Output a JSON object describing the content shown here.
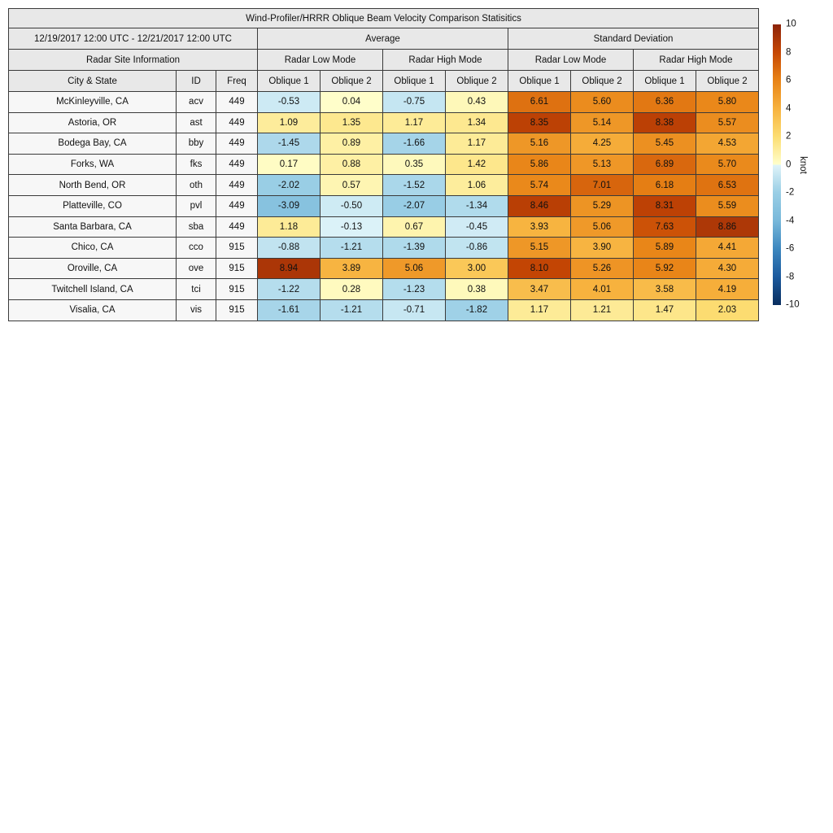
{
  "title": "Wind-Profiler/HRRR Oblique Beam Velocity Comparison Statisitics",
  "header": {
    "date_range": "12/19/2017 12:00 UTC - 12/21/2017 12:00 UTC",
    "group_average": "Average",
    "group_std": "Standard Deviation",
    "radar_site_info": "Radar Site Information",
    "mode_low": "Radar Low Mode",
    "mode_high": "Radar High Mode",
    "col_city": "City & State",
    "col_id": "ID",
    "col_freq": "Freq",
    "oblique1": "Oblique 1",
    "oblique2": "Oblique 2"
  },
  "colors": {
    "header_bg": "#e8e8e8",
    "label_cell_bg": "#f7f7f7",
    "border": "#3a3a3a"
  },
  "colorbar": {
    "label": "knot",
    "min": -10,
    "max": 10,
    "ticks": [
      10,
      8,
      6,
      4,
      2,
      0,
      -2,
      -4,
      -6,
      -8,
      -10
    ],
    "stops": [
      {
        "v": -10,
        "c": "#082d5e"
      },
      {
        "v": -8,
        "c": "#1b5a9e"
      },
      {
        "v": -6,
        "c": "#3c87bf"
      },
      {
        "v": -4,
        "c": "#78b8da"
      },
      {
        "v": -2,
        "c": "#99cee5"
      },
      {
        "v": -0.001,
        "c": "#e0f4f9"
      },
      {
        "v": 0,
        "c": "#ffffcc"
      },
      {
        "v": 2,
        "c": "#fcdd72"
      },
      {
        "v": 4,
        "c": "#f7b23e"
      },
      {
        "v": 6,
        "c": "#e88316"
      },
      {
        "v": 8,
        "c": "#c64704"
      },
      {
        "v": 10,
        "c": "#8c230a"
      }
    ]
  },
  "chart_data": {
    "type": "table",
    "title": "Wind-Profiler/HRRR Oblique Beam Velocity Comparison Statisitics",
    "value_unit": "knot",
    "color_range": [
      -10,
      10
    ],
    "column_groups": [
      "Average",
      "Standard Deviation"
    ],
    "column_modes": [
      "Radar Low Mode",
      "Radar High Mode"
    ],
    "column_obliques": [
      "Oblique 1",
      "Oblique 2"
    ],
    "value_columns": [
      "Average / Radar Low Mode / Oblique 1",
      "Average / Radar Low Mode / Oblique 2",
      "Average / Radar High Mode / Oblique 1",
      "Average / Radar High Mode / Oblique 2",
      "Standard Deviation / Radar Low Mode / Oblique 1",
      "Standard Deviation / Radar Low Mode / Oblique 2",
      "Standard Deviation / Radar High Mode / Oblique 1",
      "Standard Deviation / Radar High Mode / Oblique 2"
    ],
    "rows": [
      {
        "city": "McKinleyville, CA",
        "id": "acv",
        "freq": "449",
        "values": [
          -0.53,
          0.04,
          -0.75,
          0.43,
          6.61,
          5.6,
          6.36,
          5.8
        ]
      },
      {
        "city": "Astoria, OR",
        "id": "ast",
        "freq": "449",
        "values": [
          1.09,
          1.35,
          1.17,
          1.34,
          8.35,
          5.14,
          8.38,
          5.57
        ]
      },
      {
        "city": "Bodega Bay, CA",
        "id": "bby",
        "freq": "449",
        "values": [
          -1.45,
          0.89,
          -1.66,
          1.17,
          5.16,
          4.25,
          5.45,
          4.53
        ]
      },
      {
        "city": "Forks, WA",
        "id": "fks",
        "freq": "449",
        "values": [
          0.17,
          0.88,
          0.35,
          1.42,
          5.86,
          5.13,
          6.89,
          5.7
        ]
      },
      {
        "city": "North Bend, OR",
        "id": "oth",
        "freq": "449",
        "values": [
          -2.02,
          0.57,
          -1.52,
          1.06,
          5.74,
          7.01,
          6.18,
          6.53
        ]
      },
      {
        "city": "Platteville, CO",
        "id": "pvl",
        "freq": "449",
        "values": [
          -3.09,
          -0.5,
          -2.07,
          -1.34,
          8.46,
          5.29,
          8.31,
          5.59
        ]
      },
      {
        "city": "Santa Barbara, CA",
        "id": "sba",
        "freq": "449",
        "values": [
          1.18,
          -0.13,
          0.67,
          -0.45,
          3.93,
          5.06,
          7.63,
          8.86
        ]
      },
      {
        "city": "Chico, CA",
        "id": "cco",
        "freq": "915",
        "values": [
          -0.88,
          -1.21,
          -1.39,
          -0.86,
          5.15,
          3.9,
          5.89,
          4.41
        ]
      },
      {
        "city": "Oroville, CA",
        "id": "ove",
        "freq": "915",
        "values": [
          8.94,
          3.89,
          5.06,
          3.0,
          8.1,
          5.26,
          5.92,
          4.3
        ]
      },
      {
        "city": "Twitchell Island, CA",
        "id": "tci",
        "freq": "915",
        "values": [
          -1.22,
          0.28,
          -1.23,
          0.38,
          3.47,
          4.01,
          3.58,
          4.19
        ]
      },
      {
        "city": "Visalia, CA",
        "id": "vis",
        "freq": "915",
        "values": [
          -1.61,
          -1.21,
          -0.71,
          -1.82,
          1.17,
          1.21,
          1.47,
          2.03
        ]
      }
    ]
  }
}
